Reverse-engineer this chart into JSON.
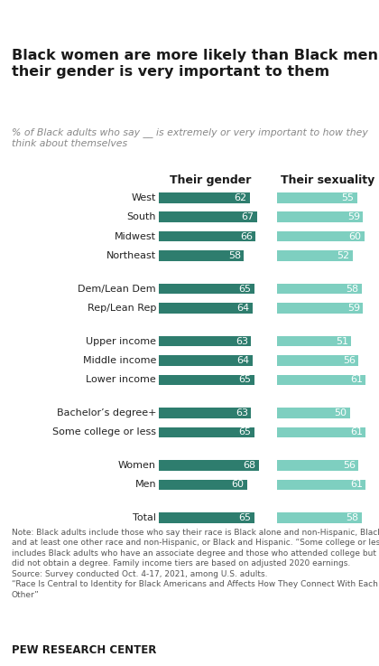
{
  "title": "Black women are more likely than Black men to say\ntheir gender is very important to them",
  "subtitle": "% of Black adults who say __ is extremely or very important to how they\nthink about themselves",
  "col1_header": "Their gender",
  "col2_header": "Their sexuality",
  "categories": [
    "Total",
    "Men",
    "Women",
    "Some college or less",
    "Bachelor’s degree+",
    "Lower income",
    "Middle income",
    "Upper income",
    "Rep/Lean Rep",
    "Dem/Lean Dem",
    "Northeast",
    "Midwest",
    "South",
    "West"
  ],
  "gender_values": [
    65,
    60,
    68,
    65,
    63,
    65,
    64,
    63,
    64,
    65,
    58,
    66,
    67,
    62
  ],
  "sexuality_values": [
    58,
    61,
    56,
    61,
    50,
    61,
    56,
    51,
    59,
    58,
    52,
    60,
    59,
    55
  ],
  "gender_color": "#2e7d6e",
  "sexuality_color": "#7ecfc0",
  "note": "Note: Black adults include those who say their race is Black alone and non-Hispanic, Black\nand at least one other race and non-Hispanic, or Black and Hispanic. “Some college or less”\nincludes Black adults who have an associate degree and those who attended college but\ndid not obtain a degree. Family income tiers are based on adjusted 2020 earnings.\nSource: Survey conducted Oct. 4-17, 2021, among U.S. adults.\n“Race Is Central to Identity for Black Americans and Affects How They Connect With Each\nOther”",
  "source_label": "PEW RESEARCH CENTER",
  "groups": [
    [
      0
    ],
    [
      1,
      2
    ],
    [
      3,
      4
    ],
    [
      5,
      6,
      7
    ],
    [
      8,
      9
    ],
    [
      10,
      11,
      12,
      13
    ]
  ],
  "background_color": "#ffffff",
  "text_color": "#222222",
  "label_color": "#ffffff",
  "title_color": "#1a1a1a",
  "subtitle_color": "#888888",
  "note_color": "#555555"
}
